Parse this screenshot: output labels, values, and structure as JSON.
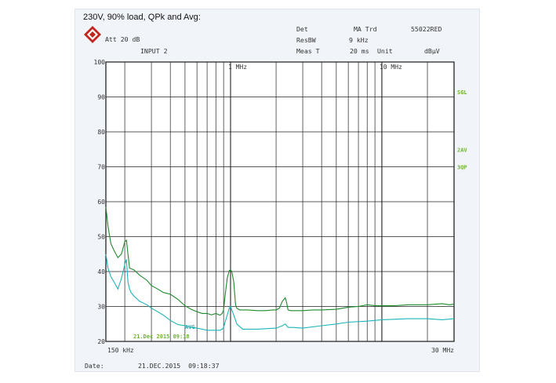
{
  "header": {
    "caption": "230V, 90% load, QPk and Avg:",
    "att": "Att 20 dB",
    "input": "INPUT 2",
    "det_label": "Det",
    "det_value": "MA Trd",
    "ref_code": "55022RED",
    "resbw_label": "ResBW",
    "resbw_value": "9 kHz",
    "meas_label": "Meas T",
    "meas_value": "20 ms",
    "unit_label": "Unit",
    "unit_value": "dBµV"
  },
  "footer": {
    "date_label": "Date:",
    "date_value": "21.DEC.2015  09:18:37"
  },
  "colors": {
    "qp_trace": "#1f8a2e",
    "avg_trace": "#1fb4b8",
    "marker_text": "#6fb33a",
    "logo": "#c0281f"
  },
  "chart_data": {
    "type": "line",
    "xscale": "log",
    "xlim": [
      0.15,
      30
    ],
    "ylim": [
      20,
      100
    ],
    "yticks": [
      20,
      30,
      40,
      50,
      60,
      70,
      80,
      90,
      100
    ],
    "ytick_labels": [
      "20",
      "30",
      "40",
      "50",
      "60",
      "70",
      "80",
      "90",
      "100"
    ],
    "x_edge_labels": {
      "left": "150 kHz",
      "right": "30 MHz"
    },
    "x_markers": [
      {
        "x": 1,
        "label": "1 MHz"
      },
      {
        "x": 10,
        "label": "10 MHz"
      }
    ],
    "right_labels": [
      {
        "y": 91.5,
        "label": "SGL"
      },
      {
        "y": 75.0,
        "label": "2AV"
      },
      {
        "y": 70.0,
        "label": "3QP"
      }
    ],
    "inside_labels": {
      "timestamp": "21.Dec 2015 09:18",
      "avg_tag": "AVG"
    },
    "grid": true,
    "series": [
      {
        "x": [
          0.15,
          0.155,
          0.162,
          0.17,
          0.18,
          0.19,
          0.2,
          0.205,
          0.21,
          0.215,
          0.22,
          0.23,
          0.25,
          0.28,
          0.3,
          0.33,
          0.36,
          0.4,
          0.45,
          0.5,
          0.55,
          0.6,
          0.65,
          0.7,
          0.75,
          0.8,
          0.85,
          0.88,
          0.9,
          0.92,
          0.95,
          0.98,
          1.0,
          1.02,
          1.05,
          1.08,
          1.1,
          1.15,
          1.3,
          1.5,
          1.7,
          1.9,
          2.0,
          2.1,
          2.2,
          2.3,
          2.35,
          2.4,
          2.5,
          3.0,
          3.5,
          4.0,
          5.0,
          6.0,
          7.0,
          8.0,
          9.0,
          10.0,
          12.0,
          15.0,
          20.0,
          25.0,
          28.0,
          30.0
        ],
        "values": [
          58.5,
          53.0,
          48.0,
          46.0,
          44.0,
          45.0,
          48.5,
          49.0,
          45.0,
          41.0,
          40.8,
          40.5,
          39.0,
          37.5,
          36.0,
          35.0,
          34.0,
          33.5,
          32.0,
          30.2,
          29.2,
          28.5,
          28.0,
          28.0,
          27.6,
          28.0,
          27.5,
          28.0,
          29.0,
          33.0,
          38.0,
          40.3,
          40.5,
          40.0,
          37.0,
          30.5,
          29.5,
          29.0,
          29.0,
          28.8,
          28.8,
          29.0,
          29.0,
          29.5,
          31.5,
          32.5,
          31.0,
          29.0,
          28.8,
          28.8,
          29.0,
          29.0,
          29.2,
          29.8,
          30.0,
          30.5,
          30.2,
          30.2,
          30.2,
          30.5,
          30.5,
          30.8,
          30.5,
          30.7
        ]
      },
      {
        "x": [
          0.15,
          0.155,
          0.162,
          0.17,
          0.18,
          0.19,
          0.2,
          0.205,
          0.21,
          0.215,
          0.22,
          0.23,
          0.25,
          0.28,
          0.3,
          0.33,
          0.36,
          0.4,
          0.45,
          0.5,
          0.55,
          0.6,
          0.65,
          0.7,
          0.75,
          0.8,
          0.85,
          0.88,
          0.9,
          0.92,
          0.95,
          0.98,
          1.0,
          1.02,
          1.05,
          1.1,
          1.2,
          1.5,
          2.0,
          2.2,
          2.3,
          2.4,
          2.6,
          3.0,
          4.0,
          5.0,
          6.0,
          8.0,
          10.0,
          15.0,
          20.0,
          25.0,
          30.0
        ],
        "values": [
          45.0,
          41.0,
          38.5,
          37.0,
          35.0,
          38.0,
          42.0,
          43.5,
          37.0,
          35.0,
          34.0,
          33.0,
          31.5,
          30.5,
          29.5,
          28.5,
          27.5,
          26.0,
          24.8,
          24.5,
          24.0,
          23.8,
          23.5,
          23.2,
          23.2,
          23.2,
          23.2,
          23.5,
          24.0,
          25.5,
          27.5,
          29.5,
          30.0,
          29.0,
          27.5,
          25.0,
          23.5,
          23.5,
          23.8,
          24.5,
          25.0,
          24.0,
          24.0,
          23.8,
          24.5,
          25.0,
          25.5,
          25.8,
          26.2,
          26.5,
          26.5,
          26.2,
          26.5
        ]
      }
    ]
  }
}
